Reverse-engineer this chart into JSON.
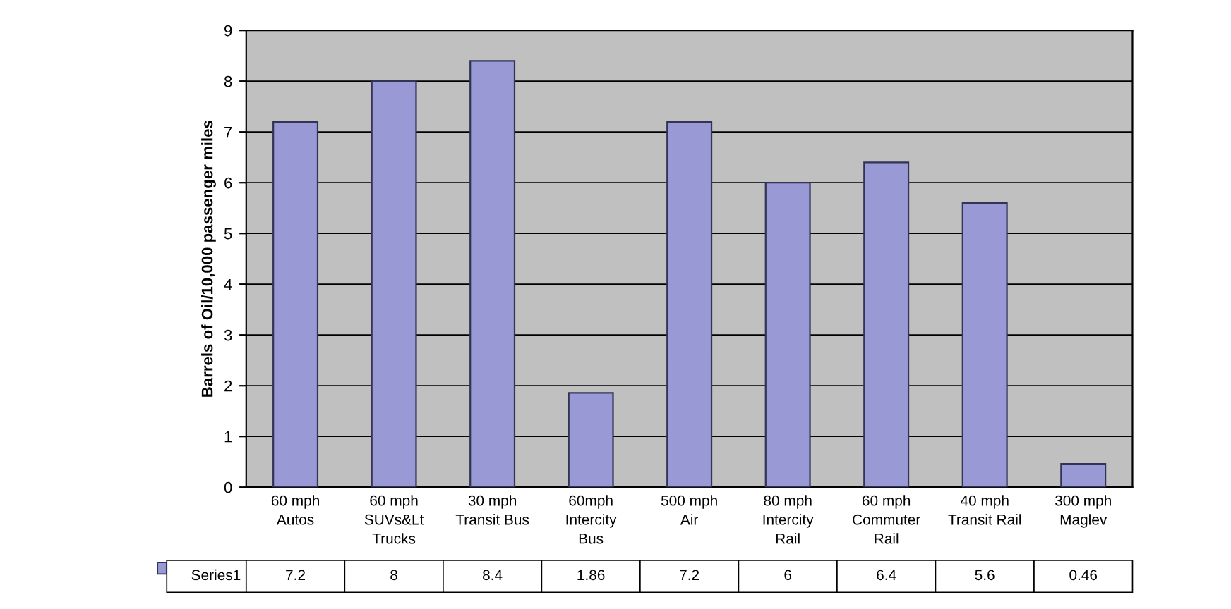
{
  "chart_data": {
    "type": "bar",
    "ylabel": "Barrels of Oil/10,000 passenger miles",
    "categories": [
      "60 mph\nAutos",
      "60 mph\nSUVs&Lt\nTrucks",
      "30 mph\nTransit Bus",
      "60mph\nIntercity\nBus",
      "500 mph\nAir",
      "80 mph\nIntercity\nRail",
      "60 mph\nCommuter\nRail",
      "40 mph\nTransit Rail",
      "300 mph\nMaglev"
    ],
    "series": [
      {
        "name": "Series1",
        "color": "#9999d6",
        "values": [
          7.2,
          8,
          8.4,
          1.86,
          7.2,
          6,
          6.4,
          5.6,
          0.46
        ]
      }
    ],
    "ylim": [
      0,
      9
    ],
    "yticks": [
      0,
      1,
      2,
      3,
      4,
      5,
      6,
      7,
      8,
      9
    ],
    "grid": "y",
    "data_labels": true,
    "legend": "bottom left"
  }
}
